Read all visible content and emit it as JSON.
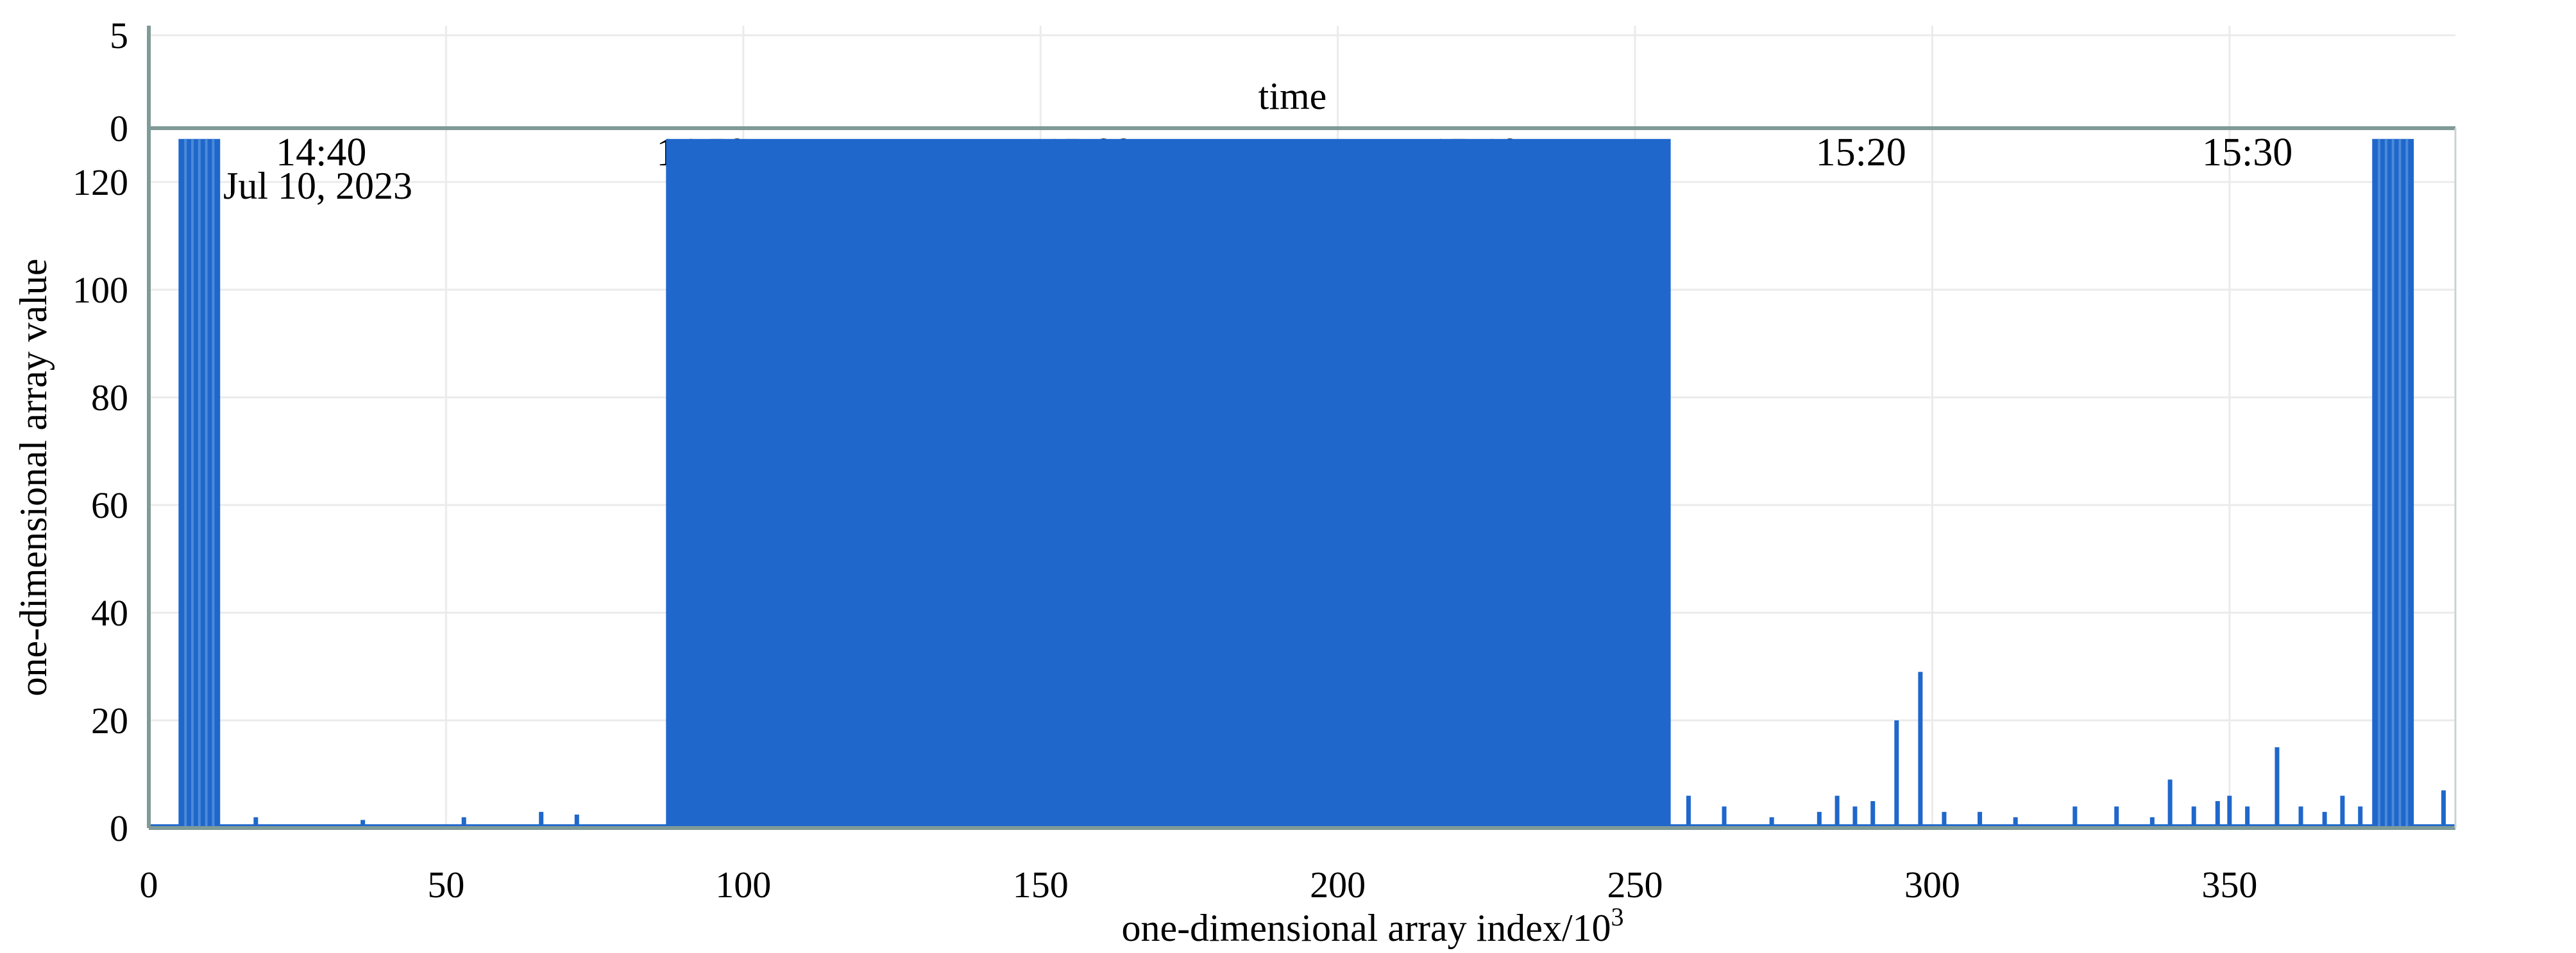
{
  "chart_data": {
    "type": "area",
    "xlabel": "one-dimensional array index/10",
    "xlabel_sup": "3",
    "ylabel": "one-dimensional array value",
    "top_axis_title": "time",
    "date_label": "Jul 10, 2023",
    "xlim": [
      0,
      388
    ],
    "ylim": [
      0,
      130
    ],
    "x_ticks": [
      0,
      50,
      100,
      150,
      200,
      250,
      300,
      350
    ],
    "y_ticks": [
      0,
      20,
      40,
      60,
      80,
      100,
      120
    ],
    "top_strip_ticks": [
      0,
      5
    ],
    "time_ticks": [
      {
        "label": "14:40",
        "x": 29
      },
      {
        "label": "14:50",
        "x": 93
      },
      {
        "label": "15:00",
        "x": 158
      },
      {
        "label": "15:10",
        "x": 223
      },
      {
        "label": "15:20",
        "x": 288
      },
      {
        "label": "15:30",
        "x": 353
      }
    ],
    "grid": true,
    "color": "#1f67cb",
    "saturated_blocks": [
      {
        "x_start": 5,
        "x_end": 12,
        "value": 128
      },
      {
        "x_start": 87,
        "x_end": 256,
        "value": 128
      },
      {
        "x_start": 374,
        "x_end": 381,
        "value": 128
      }
    ],
    "spikes": [
      {
        "x": 18,
        "value": 2
      },
      {
        "x": 36,
        "value": 1.5
      },
      {
        "x": 53,
        "value": 2
      },
      {
        "x": 66,
        "value": 3
      },
      {
        "x": 72,
        "value": 2.5
      },
      {
        "x": 259,
        "value": 6
      },
      {
        "x": 265,
        "value": 4
      },
      {
        "x": 273,
        "value": 2
      },
      {
        "x": 281,
        "value": 3
      },
      {
        "x": 284,
        "value": 6
      },
      {
        "x": 287,
        "value": 4
      },
      {
        "x": 290,
        "value": 5
      },
      {
        "x": 294,
        "value": 20
      },
      {
        "x": 298,
        "value": 29
      },
      {
        "x": 302,
        "value": 3
      },
      {
        "x": 308,
        "value": 3
      },
      {
        "x": 314,
        "value": 2
      },
      {
        "x": 324,
        "value": 4
      },
      {
        "x": 331,
        "value": 4
      },
      {
        "x": 337,
        "value": 2
      },
      {
        "x": 340,
        "value": 9
      },
      {
        "x": 344,
        "value": 4
      },
      {
        "x": 348,
        "value": 5
      },
      {
        "x": 350,
        "value": 6
      },
      {
        "x": 353,
        "value": 4
      },
      {
        "x": 358,
        "value": 15
      },
      {
        "x": 362,
        "value": 4
      },
      {
        "x": 366,
        "value": 3
      },
      {
        "x": 369,
        "value": 6
      },
      {
        "x": 372,
        "value": 4
      },
      {
        "x": 386,
        "value": 7
      }
    ],
    "baseline_level": 0.7
  }
}
